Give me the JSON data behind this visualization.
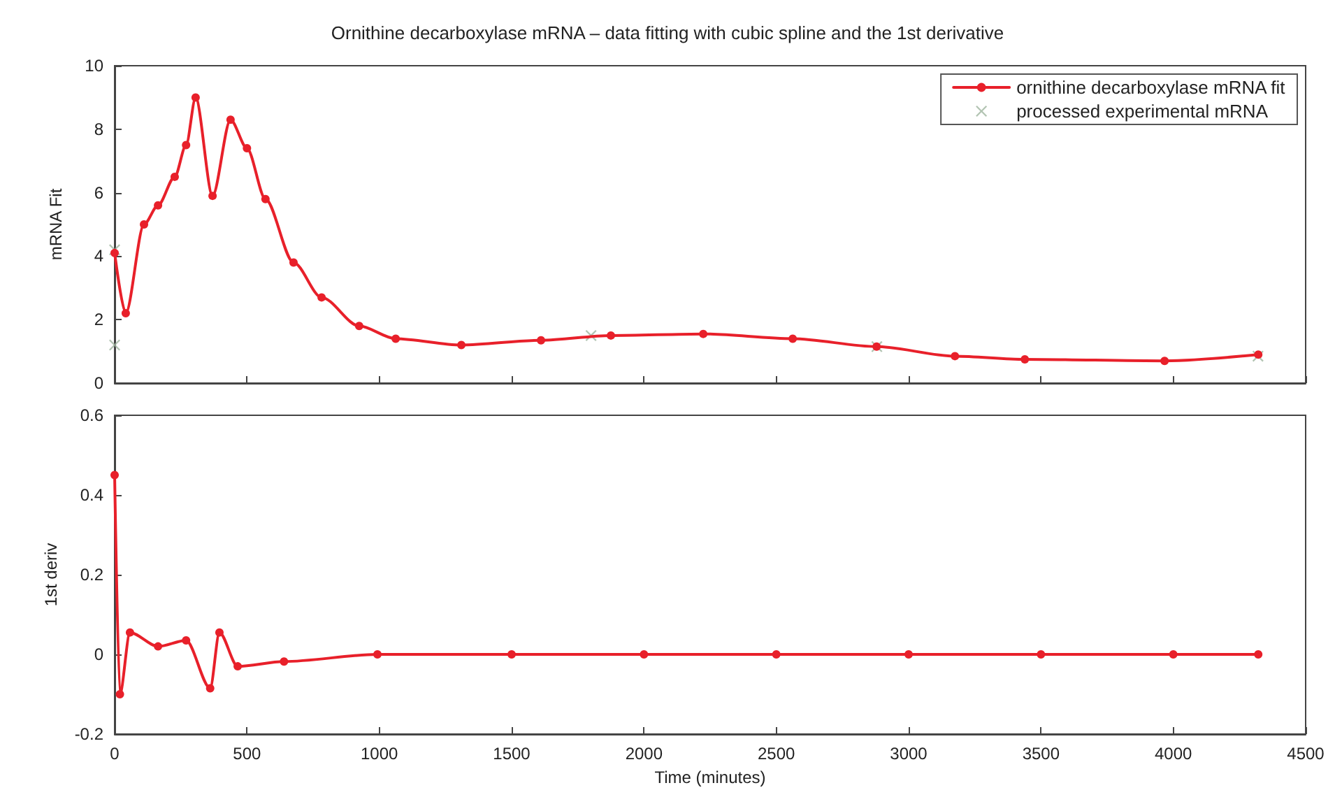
{
  "chart_data": [
    {
      "type": "line",
      "title": "Ornithine decarboxylase mRNA – data fitting with cubic spline and the 1st derivative",
      "ylabel": "mRNA Fit",
      "xlim": [
        0,
        4500
      ],
      "xticks": [
        0,
        500,
        1000,
        1500,
        2000,
        2500,
        3000,
        3500,
        4000,
        4500
      ],
      "ylim": [
        0,
        10
      ],
      "yticks": [
        0,
        2,
        4,
        6,
        8,
        10
      ],
      "tick_labels": "y",
      "legend": "top right",
      "grid": false,
      "line_style": "solid",
      "series": [
        {
          "name": "ornithine decarboxylase mRNA fit",
          "color": "#e8202a",
          "marker": "circle",
          "x": [
            0,
            42,
            111,
            164,
            227,
            270,
            306,
            370,
            438,
            500,
            570,
            676,
            782,
            924,
            1062,
            1310,
            1611,
            1875,
            2224,
            2562,
            2879,
            3175,
            3439,
            3967,
            4321
          ],
          "values": [
            4.1,
            2.2,
            5.0,
            5.6,
            6.5,
            7.5,
            9.0,
            5.9,
            8.3,
            7.4,
            5.8,
            3.8,
            2.7,
            1.8,
            1.4,
            1.2,
            1.35,
            1.5,
            1.55,
            1.4,
            1.15,
            0.85,
            0.75,
            0.7,
            0.9
          ]
        },
        {
          "name": "processed experimental mRNA",
          "type": "scatter",
          "color": "#9fb59f",
          "marker": "cross",
          "x": [
            0,
            0,
            1800,
            2880,
            4320
          ],
          "values": [
            1.2,
            4.2,
            1.5,
            1.15,
            0.85
          ]
        }
      ]
    },
    {
      "type": "line",
      "xlabel": "Time (minutes)",
      "ylabel": "1st deriv",
      "xlim": [
        0,
        4500
      ],
      "xticks": [
        0,
        500,
        1000,
        1500,
        2000,
        2500,
        3000,
        3500,
        4000,
        4500
      ],
      "ylim": [
        -0.2,
        0.6
      ],
      "yticks": [
        -0.2,
        0,
        0.2,
        0.4,
        0.6
      ],
      "grid": false,
      "line_style": "solid",
      "series": [
        {
          "color": "#e8202a",
          "marker": "circle",
          "x": [
            0,
            20,
            58,
            164,
            270,
            361,
            396,
            465,
            640,
            993,
            1500,
            2000,
            2500,
            3000,
            3500,
            4000,
            4321
          ],
          "values": [
            0.45,
            -0.1,
            0.055,
            0.02,
            0.035,
            -0.085,
            0.055,
            -0.03,
            -0.018,
            0,
            0,
            0,
            0,
            0,
            0,
            0,
            0
          ]
        }
      ]
    }
  ]
}
